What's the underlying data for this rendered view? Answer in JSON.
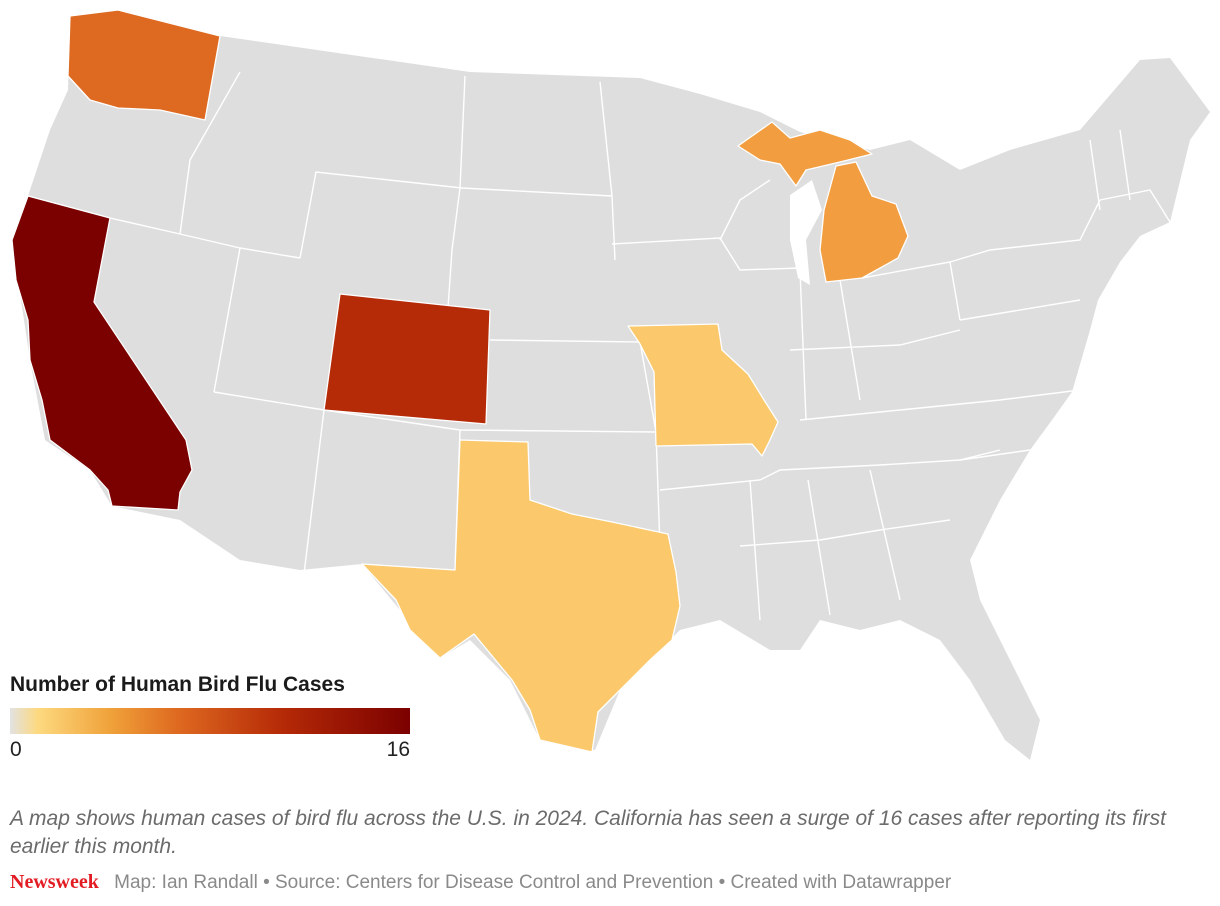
{
  "legend": {
    "title": "Number of Human Bird Flu Cases",
    "min_label": "0",
    "max_label": "16",
    "scale_colors": [
      "#e2e2e2",
      "#fdd97f",
      "#f0a23a",
      "#de6920",
      "#b52a07",
      "#7b0000"
    ]
  },
  "caption": "A map shows human cases of bird flu across the U.S. in 2024. California has seen a surge of 16 cases after reporting its first earlier this month.",
  "footer": {
    "brand": "Newsweek",
    "credit": "Map: Ian Randall • Source: Centers for Disease Control and Prevention • Created with Datawrapper"
  },
  "map_colors": {
    "base_fill": "#dedede",
    "border": "#ffffff",
    "california": "#7b0000",
    "colorado": "#b52a07",
    "washington": "#de6920",
    "michigan": "#f29d3f",
    "texas": "#fbc96b",
    "missouri": "#fbc96b"
  }
}
